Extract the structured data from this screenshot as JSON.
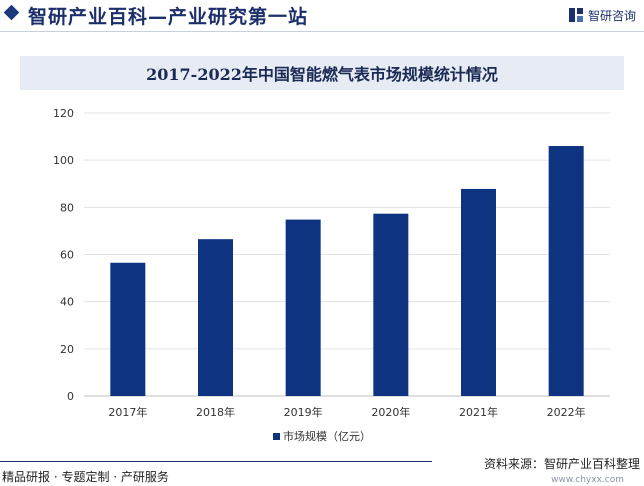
{
  "header": {
    "site_title": "智研产业百科—产业研究第一站",
    "brand_name": "智研咨询"
  },
  "chart_data": {
    "type": "bar",
    "title": "2017-2022年中国智能燃气表市场规模统计情况",
    "categories": [
      "2017年",
      "2018年",
      "2019年",
      "2020年",
      "2021年",
      "2022年"
    ],
    "series": [
      {
        "name": "市场规模（亿元）",
        "values": [
          56.5,
          66.5,
          74.8,
          77.3,
          87.8,
          106.0
        ]
      }
    ],
    "ylim": [
      0,
      120
    ],
    "yticks": [
      0,
      20,
      40,
      60,
      80,
      100,
      120
    ],
    "xlabel": "",
    "ylabel": "",
    "grid": true,
    "legend_position": "bottom-center",
    "bar_color": "#0d3381"
  },
  "footer": {
    "left_text": "精品研报 · 专题定制 · 产研服务",
    "source": "资料来源：智研产业百科整理",
    "url": "www.chyxx.com"
  }
}
